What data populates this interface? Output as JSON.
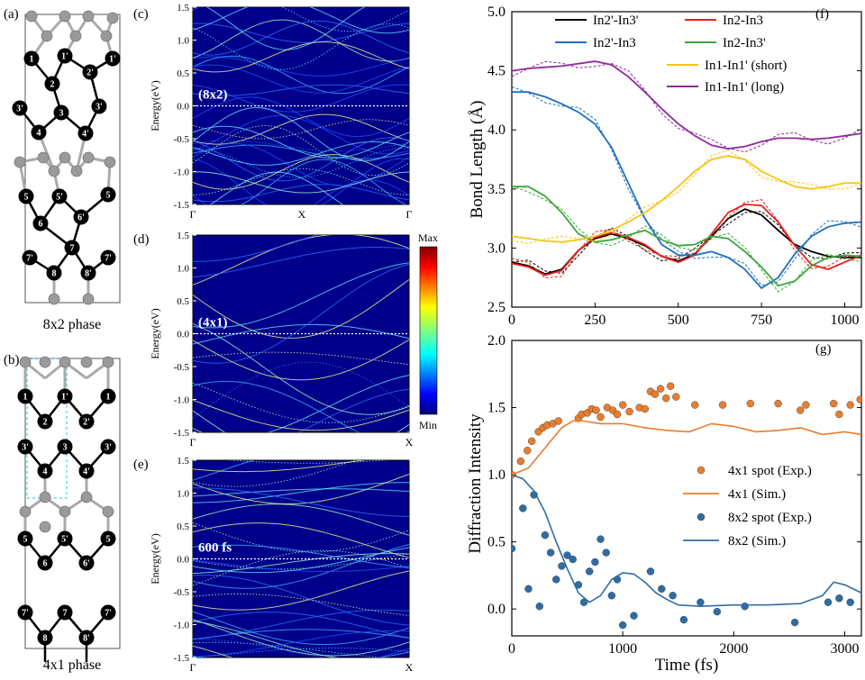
{
  "panels": {
    "a": {
      "label": "(a)",
      "caption": "8x2 phase"
    },
    "b": {
      "label": "(b)",
      "caption": "4x1 phase"
    },
    "c": {
      "label": "(c)",
      "tag": "(8x2)",
      "ylabel": "Energy(eV)",
      "xticks": [
        "Γ",
        "X",
        "Γ"
      ]
    },
    "d": {
      "label": "(d)",
      "tag": "(4x1)",
      "ylabel": "Energy(eV)",
      "xticks": [
        "Γ",
        "X"
      ]
    },
    "e": {
      "label": "(e)",
      "tag": "600 fs",
      "ylabel": "Energy(eV)",
      "xticks": [
        "Γ",
        "X"
      ]
    },
    "f": {
      "label": "(f)"
    },
    "g": {
      "label": "(g)"
    }
  },
  "band_yticks": [
    "1.5",
    "1.0",
    "0.5",
    "0.0",
    "-0.5",
    "-1.0",
    "-1.5"
  ],
  "colorbar": {
    "max_label": "Max",
    "min_label": "Min"
  },
  "structure_a_labels": [
    "1",
    "1'",
    "1'",
    "2",
    "2'",
    "3'",
    "3",
    "3'",
    "4",
    "4'",
    "5",
    "5'",
    "5",
    "6",
    "6'",
    "7",
    "7'",
    "7'",
    "8",
    "8'"
  ],
  "structure_b_labels": [
    "1",
    "1'",
    "1",
    "2",
    "2'",
    "3'",
    "3",
    "3'",
    "4",
    "4'",
    "5",
    "5'",
    "5",
    "6",
    "6'",
    "7'",
    "7",
    "7'",
    "8",
    "8'"
  ],
  "chart_data": [
    {
      "type": "line",
      "panel": "f",
      "xlabel": "",
      "ylabel": "Bond Length (Å)",
      "xlim": [
        0,
        1050
      ],
      "ylim": [
        2.5,
        5.0
      ],
      "xticks": [
        0,
        250,
        500,
        750,
        1000
      ],
      "yticks": [
        2.5,
        3.0,
        3.5,
        4.0,
        4.5,
        5.0
      ],
      "legend_position": "top",
      "series": [
        {
          "name": "In2'-In3'",
          "color": "#000000",
          "x": [
            0,
            50,
            100,
            150,
            200,
            250,
            300,
            350,
            400,
            450,
            500,
            550,
            600,
            650,
            700,
            750,
            800,
            850,
            900,
            950,
            1000,
            1050
          ],
          "y": [
            2.88,
            2.85,
            2.78,
            2.82,
            2.98,
            3.08,
            3.12,
            3.08,
            3.02,
            2.93,
            2.89,
            2.95,
            3.1,
            3.25,
            3.33,
            3.28,
            3.15,
            3.03,
            2.97,
            2.93,
            2.92,
            2.92
          ]
        },
        {
          "name": "In2-In3",
          "color": "#e8211d",
          "x": [
            0,
            50,
            100,
            150,
            200,
            250,
            300,
            350,
            400,
            450,
            500,
            550,
            600,
            650,
            700,
            750,
            800,
            850,
            900,
            950,
            1000,
            1050
          ],
          "y": [
            2.87,
            2.84,
            2.77,
            2.81,
            2.98,
            3.09,
            3.13,
            3.09,
            3.03,
            2.93,
            2.88,
            2.94,
            3.12,
            3.3,
            3.37,
            3.36,
            3.22,
            3.02,
            2.86,
            2.82,
            2.88,
            2.94
          ]
        },
        {
          "name": "In2'-In3",
          "color": "#1f6fbf",
          "x": [
            0,
            50,
            100,
            150,
            200,
            250,
            300,
            350,
            400,
            450,
            500,
            550,
            600,
            650,
            700,
            750,
            800,
            850,
            900,
            950,
            1000,
            1050
          ],
          "y": [
            4.32,
            4.32,
            4.28,
            4.22,
            4.15,
            4.05,
            3.85,
            3.55,
            3.25,
            3.03,
            2.94,
            2.94,
            2.97,
            2.92,
            2.82,
            2.66,
            2.75,
            2.95,
            3.1,
            3.18,
            3.21,
            3.22
          ]
        },
        {
          "name": "In2-In3'",
          "color": "#3aa83a",
          "x": [
            0,
            50,
            100,
            150,
            200,
            250,
            300,
            350,
            400,
            450,
            500,
            550,
            600,
            650,
            700,
            750,
            800,
            850,
            900,
            950,
            1000,
            1050
          ],
          "y": [
            3.52,
            3.52,
            3.44,
            3.3,
            3.12,
            3.05,
            3.07,
            3.11,
            3.15,
            3.07,
            3.02,
            3.03,
            3.1,
            3.08,
            2.97,
            2.84,
            2.68,
            2.72,
            2.85,
            2.92,
            2.94,
            2.93
          ]
        },
        {
          "name": "In1-In1' (short)",
          "color": "#f5c518",
          "x": [
            0,
            50,
            100,
            150,
            200,
            250,
            300,
            350,
            400,
            450,
            500,
            550,
            600,
            650,
            700,
            750,
            800,
            850,
            900,
            950,
            1000,
            1050
          ],
          "y": [
            3.1,
            3.08,
            3.06,
            3.05,
            3.07,
            3.1,
            3.15,
            3.22,
            3.3,
            3.4,
            3.52,
            3.65,
            3.75,
            3.78,
            3.75,
            3.65,
            3.58,
            3.52,
            3.5,
            3.52,
            3.55,
            3.55
          ]
        },
        {
          "name": "In1-In1' (long)",
          "color": "#8e2a9c",
          "x": [
            0,
            50,
            100,
            150,
            200,
            250,
            300,
            350,
            400,
            450,
            500,
            550,
            600,
            650,
            700,
            750,
            800,
            850,
            900,
            950,
            1000,
            1050
          ],
          "y": [
            4.5,
            4.52,
            4.53,
            4.54,
            4.56,
            4.58,
            4.55,
            4.45,
            4.32,
            4.18,
            4.05,
            3.95,
            3.87,
            3.84,
            3.86,
            3.9,
            3.93,
            3.93,
            3.92,
            3.93,
            3.95,
            3.97
          ]
        }
      ]
    },
    {
      "type": "scatter",
      "panel": "g",
      "xlabel": "Time (fs)",
      "ylabel": "Diffraction Intensity",
      "xlim": [
        0,
        3150
      ],
      "ylim": [
        -0.2,
        2.0
      ],
      "xticks": [
        0,
        1000,
        2000,
        3000
      ],
      "yticks": [
        0.0,
        0.5,
        1.0,
        1.5,
        2.0
      ],
      "legend_position": "right",
      "series": [
        {
          "name": "4x1 spot (Exp.)",
          "kind": "points",
          "color": "#e87d2e",
          "x": [
            0,
            80,
            140,
            180,
            240,
            280,
            320,
            370,
            420,
            600,
            630,
            680,
            720,
            760,
            800,
            860,
            910,
            950,
            1000,
            1060,
            1150,
            1200,
            1250,
            1290,
            1340,
            1390,
            1430,
            1480,
            1650,
            1900,
            2150,
            2400,
            2600,
            2650,
            2900,
            2950,
            3050,
            3140
          ],
          "y": [
            1.0,
            1.1,
            1.18,
            1.25,
            1.32,
            1.35,
            1.37,
            1.38,
            1.4,
            1.42,
            1.45,
            1.46,
            1.49,
            1.48,
            1.43,
            1.5,
            1.48,
            1.45,
            1.52,
            1.47,
            1.5,
            1.49,
            1.62,
            1.6,
            1.64,
            1.57,
            1.66,
            1.58,
            1.52,
            1.52,
            1.53,
            1.53,
            1.48,
            1.52,
            1.53,
            1.45,
            1.52,
            1.56
          ]
        },
        {
          "name": "4x1 (Sim.)",
          "kind": "line",
          "color": "#e87d2e",
          "x": [
            0,
            150,
            300,
            450,
            550,
            650,
            800,
            1000,
            1200,
            1400,
            1600,
            1800,
            2000,
            2200,
            2400,
            2600,
            2800,
            3000,
            3150
          ],
          "y": [
            1.0,
            1.05,
            1.2,
            1.35,
            1.4,
            1.4,
            1.38,
            1.38,
            1.35,
            1.33,
            1.32,
            1.38,
            1.36,
            1.32,
            1.33,
            1.35,
            1.3,
            1.32,
            1.3
          ]
        },
        {
          "name": "8x2 spot (Exp.)",
          "kind": "points",
          "color": "#2e6da4",
          "x": [
            0,
            100,
            150,
            200,
            250,
            300,
            350,
            400,
            450,
            500,
            550,
            600,
            650,
            700,
            750,
            800,
            850,
            900,
            950,
            1000,
            1100,
            1250,
            1350,
            1450,
            1550,
            1700,
            1850,
            2100,
            2550,
            2850,
            2950,
            3050
          ],
          "y": [
            0.45,
            0.75,
            0.15,
            0.85,
            0.02,
            0.55,
            0.42,
            0.22,
            0.32,
            0.4,
            0.37,
            0.18,
            0.05,
            0.28,
            0.35,
            0.52,
            0.42,
            0.1,
            0.22,
            -0.12,
            -0.05,
            0.28,
            0.15,
            0.1,
            -0.08,
            0.05,
            -0.02,
            0.02,
            -0.1,
            0.05,
            0.08,
            0.05
          ]
        },
        {
          "name": "8x2 (Sim.)",
          "kind": "line",
          "color": "#2e6da4",
          "x": [
            0,
            100,
            200,
            300,
            400,
            500,
            600,
            700,
            800,
            900,
            1000,
            1100,
            1200,
            1300,
            1400,
            1500,
            1700,
            2000,
            2300,
            2600,
            2800,
            2900,
            3000,
            3150
          ],
          "y": [
            1.0,
            0.97,
            0.88,
            0.72,
            0.5,
            0.3,
            0.12,
            0.05,
            0.1,
            0.22,
            0.27,
            0.26,
            0.2,
            0.12,
            0.07,
            0.03,
            0.02,
            0.03,
            0.03,
            0.04,
            0.1,
            0.2,
            0.18,
            0.12
          ]
        }
      ]
    }
  ]
}
